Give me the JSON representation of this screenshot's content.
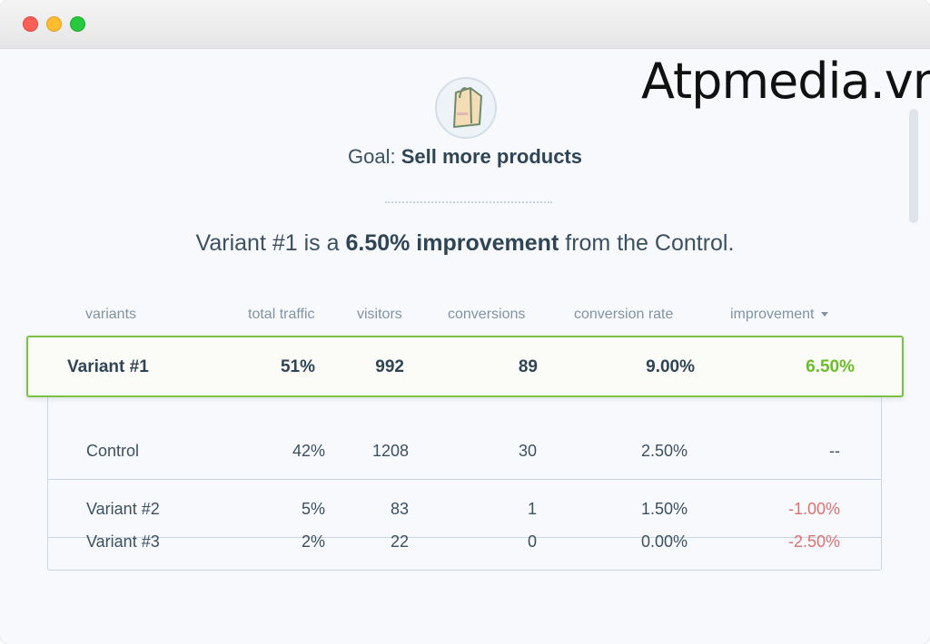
{
  "window": {
    "controls": [
      "close",
      "minimize",
      "maximize"
    ]
  },
  "watermark": "Atpmedia.vn",
  "goal": {
    "icon": "shopping-bag-icon",
    "prefix": "Goal:",
    "name": "Sell more products"
  },
  "headline": {
    "part1": "Variant #1 is a",
    "bold": "6.50% improvement",
    "part2": "from the Control."
  },
  "table": {
    "headers": [
      "variants",
      "total traffic",
      "visitors",
      "conversions",
      "conversion rate",
      "improvement"
    ],
    "sort_column": "improvement",
    "winner": {
      "variant": "Variant #1",
      "total_traffic": "51%",
      "visitors": "992",
      "conversions": "89",
      "conversion_rate": "9.00%",
      "improvement": "6.50%"
    },
    "rows": [
      {
        "variant": "Control",
        "total_traffic": "42%",
        "visitors": "1208",
        "conversions": "30",
        "conversion_rate": "2.50%",
        "improvement": "--"
      },
      {
        "variant": "Variant #2",
        "total_traffic": "5%",
        "visitors": "83",
        "conversions": "1",
        "conversion_rate": "1.50%",
        "improvement": "-1.00%"
      },
      {
        "variant": "Variant #3",
        "total_traffic": "2%",
        "visitors": "22",
        "conversions": "0",
        "conversion_rate": "0.00%",
        "improvement": "-2.50%"
      }
    ]
  },
  "colors": {
    "positive": "#6cbd2a",
    "negative": "#e07070",
    "winner_border": "#7cc142"
  }
}
